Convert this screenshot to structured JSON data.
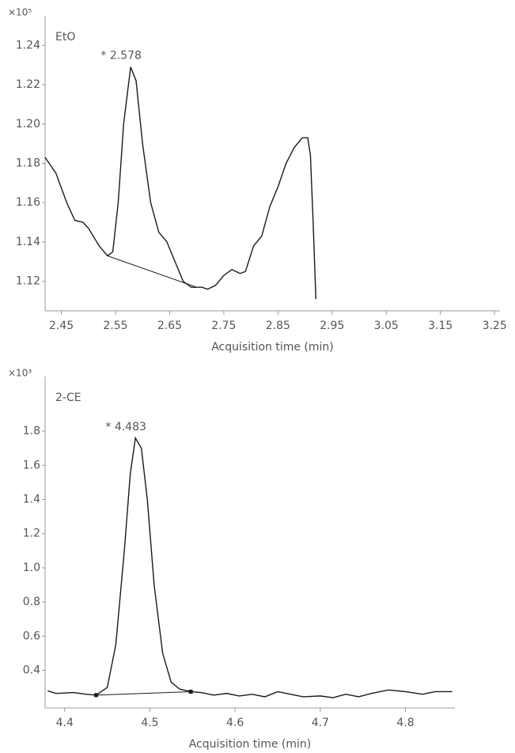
{
  "chart_data": [
    {
      "type": "line",
      "y_multiplier": "×10⁵",
      "annotation": "* 2.578",
      "xlabel": "Acquisition time (min)",
      "x": [
        2.42,
        2.44,
        2.46,
        2.475,
        2.49,
        2.5,
        2.52,
        2.535,
        2.545,
        2.555,
        2.565,
        2.578,
        2.588,
        2.6,
        2.615,
        2.63,
        2.645,
        2.66,
        2.675,
        2.69,
        2.71,
        2.72,
        2.735,
        2.75,
        2.765,
        2.78,
        2.79,
        2.805,
        2.82,
        2.835,
        2.85,
        2.865,
        2.88,
        2.895,
        2.905,
        2.91,
        2.915,
        2.92
      ],
      "series": [
        {
          "name": "EtO",
          "color": "#1a1a1a",
          "values": [
            1.183,
            1.175,
            1.16,
            1.151,
            1.15,
            1.147,
            1.138,
            1.133,
            1.135,
            1.16,
            1.2,
            1.229,
            1.222,
            1.19,
            1.16,
            1.145,
            1.14,
            1.13,
            1.12,
            1.117,
            1.117,
            1.116,
            1.118,
            1.123,
            1.126,
            1.124,
            1.125,
            1.138,
            1.143,
            1.158,
            1.168,
            1.18,
            1.188,
            1.193,
            1.193,
            1.184,
            1.15,
            1.111
          ]
        }
      ],
      "baseline": {
        "x": [
          2.535,
          2.7
        ],
        "values": [
          1.133,
          1.117
        ]
      },
      "baseline_markers": false,
      "xlim": [
        2.42,
        3.26
      ],
      "ylim": [
        1.105,
        1.255
      ],
      "xticks": [
        2.45,
        2.55,
        2.65,
        2.75,
        2.85,
        2.95,
        3.05,
        3.15,
        3.25
      ],
      "yticks": [
        1.12,
        1.14,
        1.16,
        1.18,
        {
          "value": 1.2,
          "label": "1.20"
        },
        1.22,
        1.24
      ]
    },
    {
      "type": "line",
      "y_multiplier": "×10³",
      "annotation": "* 4.483",
      "xlabel": "Acquisition time (min)",
      "x": [
        4.38,
        4.39,
        4.41,
        4.425,
        4.437,
        4.45,
        4.46,
        4.47,
        4.477,
        4.483,
        4.49,
        4.497,
        4.505,
        4.515,
        4.525,
        4.535,
        4.548,
        4.56,
        4.575,
        4.59,
        4.605,
        4.62,
        4.635,
        4.65,
        4.665,
        4.68,
        4.7,
        4.715,
        4.73,
        4.745,
        4.76,
        4.78,
        4.8,
        4.82,
        4.835,
        4.855
      ],
      "series": [
        {
          "name": "2-CE",
          "color": "#1a1a1a",
          "values": [
            0.28,
            0.265,
            0.27,
            0.26,
            0.255,
            0.3,
            0.55,
            1.1,
            1.55,
            1.76,
            1.7,
            1.4,
            0.9,
            0.5,
            0.33,
            0.29,
            0.275,
            0.27,
            0.255,
            0.265,
            0.25,
            0.26,
            0.245,
            0.275,
            0.26,
            0.245,
            0.25,
            0.24,
            0.26,
            0.245,
            0.265,
            0.285,
            0.275,
            0.26,
            0.275,
            0.275
          ]
        }
      ],
      "baseline": {
        "x": [
          4.437,
          4.548
        ],
        "values": [
          0.255,
          0.275
        ]
      },
      "baseline_markers": true,
      "xlim": [
        4.377,
        4.858
      ],
      "ylim": [
        0.18,
        2.12
      ],
      "xticks": [
        4.4,
        4.5,
        4.6,
        4.7,
        4.8
      ],
      "yticks": [
        0.4,
        0.6,
        0.8,
        {
          "value": 1,
          "label": "1.0"
        },
        1.2,
        1.4,
        1.6,
        1.8
      ]
    }
  ]
}
